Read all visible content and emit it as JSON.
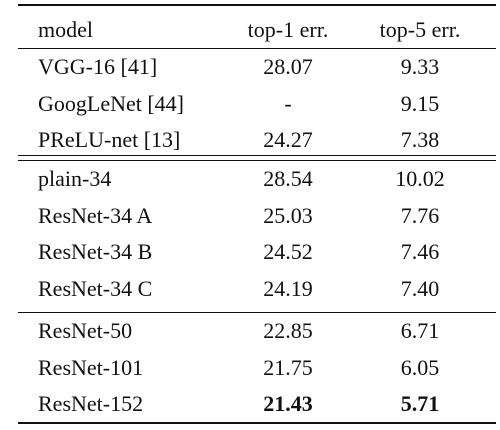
{
  "table": {
    "header": [
      "model",
      "top-1 err.",
      "top-5 err."
    ],
    "groups": [
      [
        [
          "VGG-16 [41]",
          "28.07",
          "9.33"
        ],
        [
          "GoogLeNet [44]",
          "-",
          "9.15"
        ],
        [
          "PReLU-net [13]",
          "24.27",
          "7.38"
        ]
      ],
      [
        [
          "plain-34",
          "28.54",
          "10.02"
        ],
        [
          "ResNet-34 A",
          "25.03",
          "7.76"
        ],
        [
          "ResNet-34 B",
          "24.52",
          "7.46"
        ],
        [
          "ResNet-34 C",
          "24.19",
          "7.40"
        ]
      ],
      [
        [
          "ResNet-50",
          "22.85",
          "6.71"
        ],
        [
          "ResNet-101",
          "21.75",
          "6.05"
        ],
        [
          "ResNet-152",
          "21.43",
          "5.71"
        ]
      ]
    ]
  }
}
